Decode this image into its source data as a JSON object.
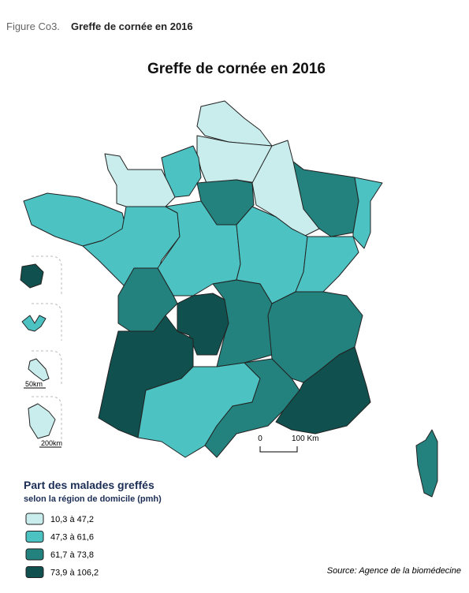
{
  "header": {
    "figure_label": "Figure Co3.",
    "figure_title": "Greffe de cornée en 2016"
  },
  "map": {
    "title": "Greffe de cornée en 2016",
    "scale": {
      "start": "0",
      "end": "100 Km"
    },
    "inset_scales": [
      "50km",
      "200km"
    ]
  },
  "legend": {
    "title": "Part des malades greffés",
    "subtitle": "selon la région de domicile (pmh)",
    "classes": [
      {
        "label": "10,3 à 47,2",
        "color": "#c9ecec"
      },
      {
        "label": "47,3 à 61,6",
        "color": "#4cc3c2"
      },
      {
        "label": "61,7 à 73,8",
        "color": "#23827e"
      },
      {
        "label": "73,9 à 106,2",
        "color": "#10504e"
      }
    ]
  },
  "source": "Source: Agence de la biomédecine"
}
